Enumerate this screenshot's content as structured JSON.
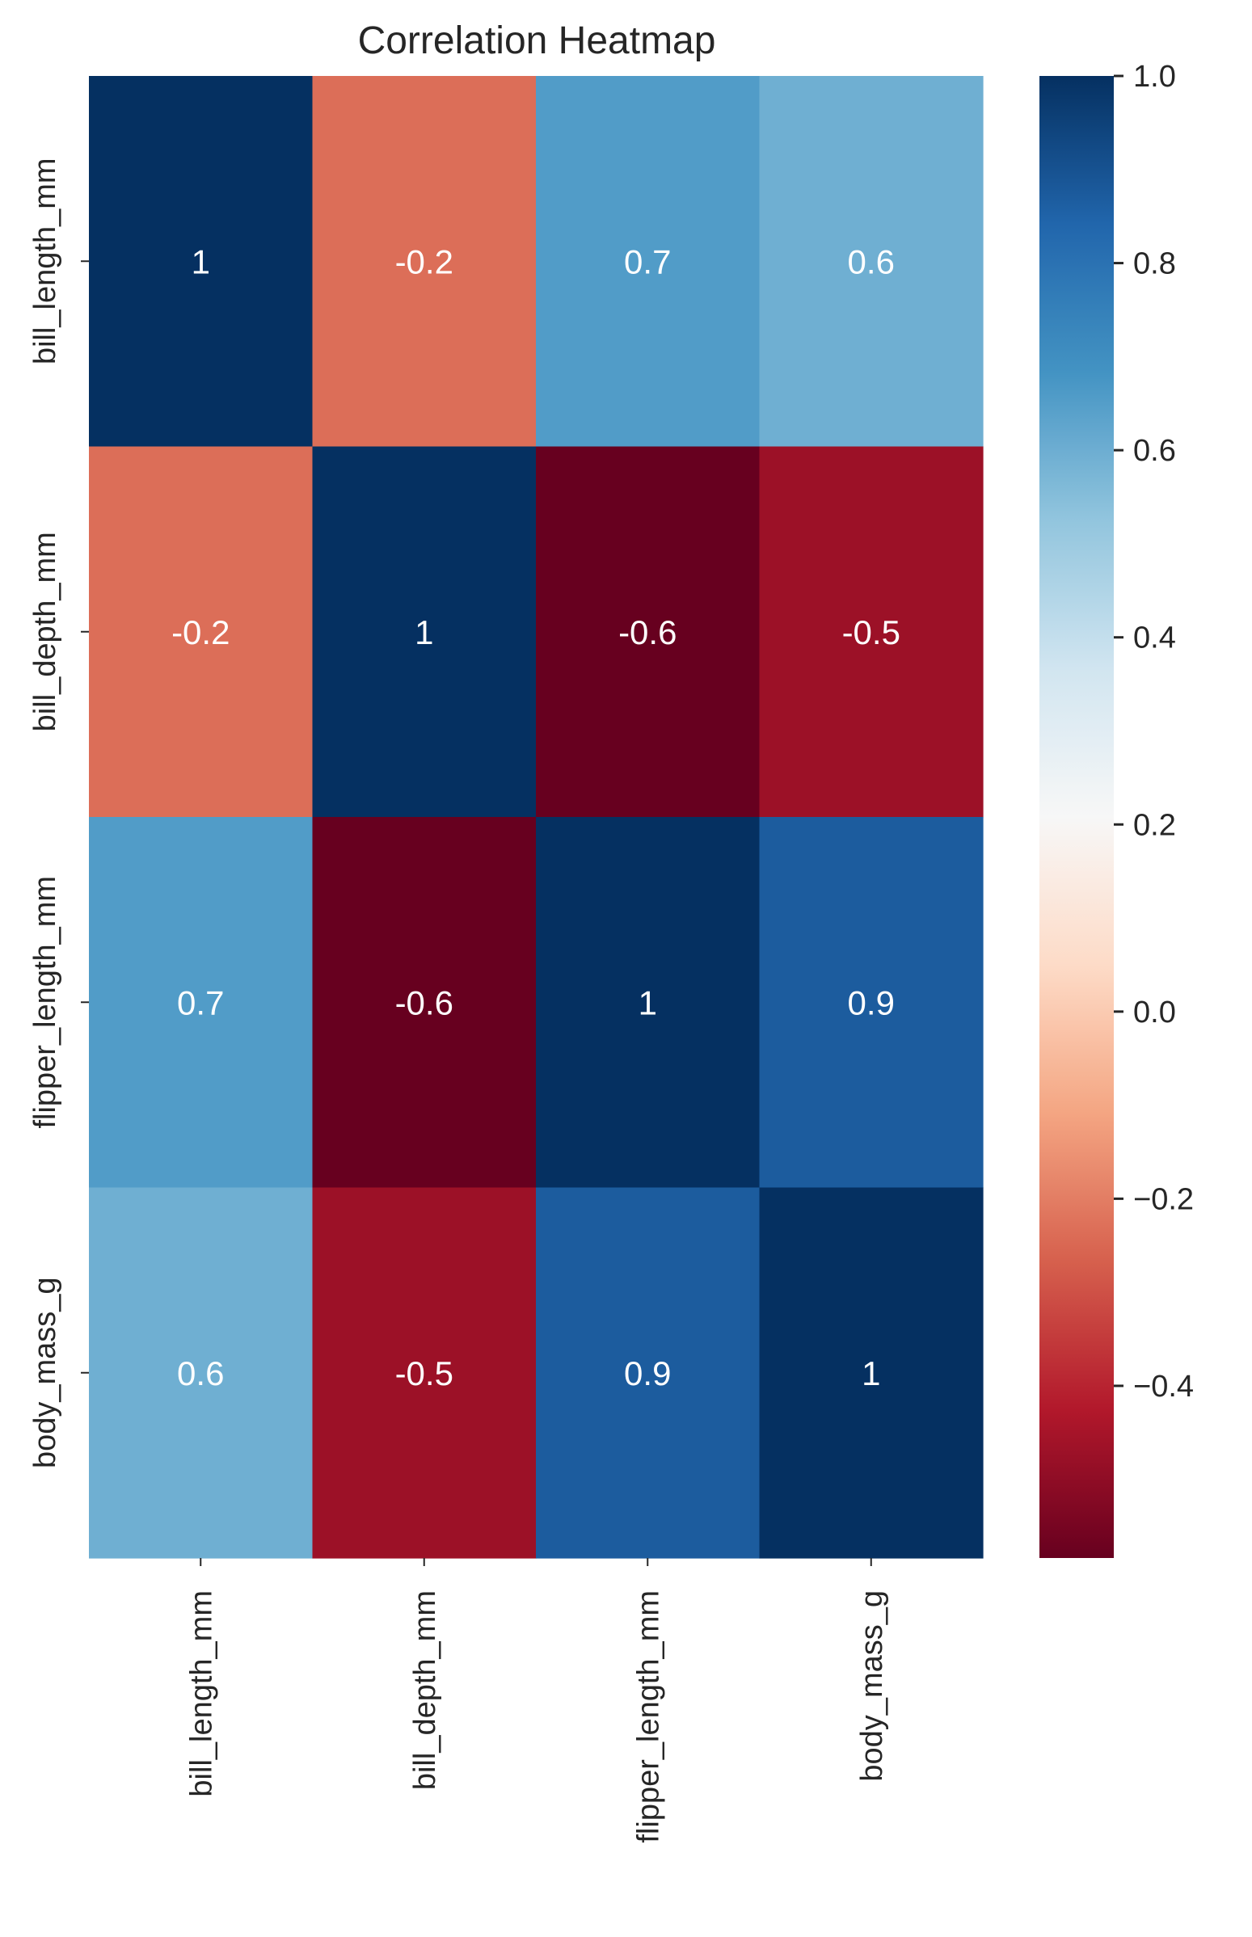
{
  "chart_data": {
    "type": "heatmap",
    "title": "Correlation Heatmap",
    "x_categories": [
      "bill_length_mm",
      "bill_depth_mm",
      "flipper_length_mm",
      "body_mass_g"
    ],
    "y_categories": [
      "bill_length_mm",
      "bill_depth_mm",
      "flipper_length_mm",
      "body_mass_g"
    ],
    "values": [
      [
        1.0,
        -0.235,
        0.656,
        0.595
      ],
      [
        -0.235,
        1.0,
        -0.584,
        -0.472
      ],
      [
        0.656,
        -0.584,
        1.0,
        0.871
      ],
      [
        0.595,
        -0.472,
        0.871,
        1.0
      ]
    ],
    "cell_labels": [
      [
        "1",
        "-0.2",
        "0.7",
        "0.6"
      ],
      [
        "-0.2",
        "1",
        "-0.6",
        "-0.5"
      ],
      [
        "0.7",
        "-0.6",
        "1",
        "0.9"
      ],
      [
        "0.6",
        "-0.5",
        "0.9",
        "1"
      ]
    ],
    "colormap": "RdBu",
    "vmin": -0.584,
    "vmax": 1.0,
    "colorbar_ticks": [
      {
        "value": 1.0,
        "label": "1.0"
      },
      {
        "value": 0.8,
        "label": "0.8"
      },
      {
        "value": 0.6,
        "label": "0.6"
      },
      {
        "value": 0.4,
        "label": "0.4"
      },
      {
        "value": 0.2,
        "label": "0.2"
      },
      {
        "value": 0.0,
        "label": "0.0"
      },
      {
        "value": -0.2,
        "label": "−0.2"
      },
      {
        "value": -0.4,
        "label": "−0.4"
      }
    ],
    "colorbar_position": "right",
    "grid": false,
    "text_color": "#262626",
    "annotation_color": "#ffffff"
  }
}
